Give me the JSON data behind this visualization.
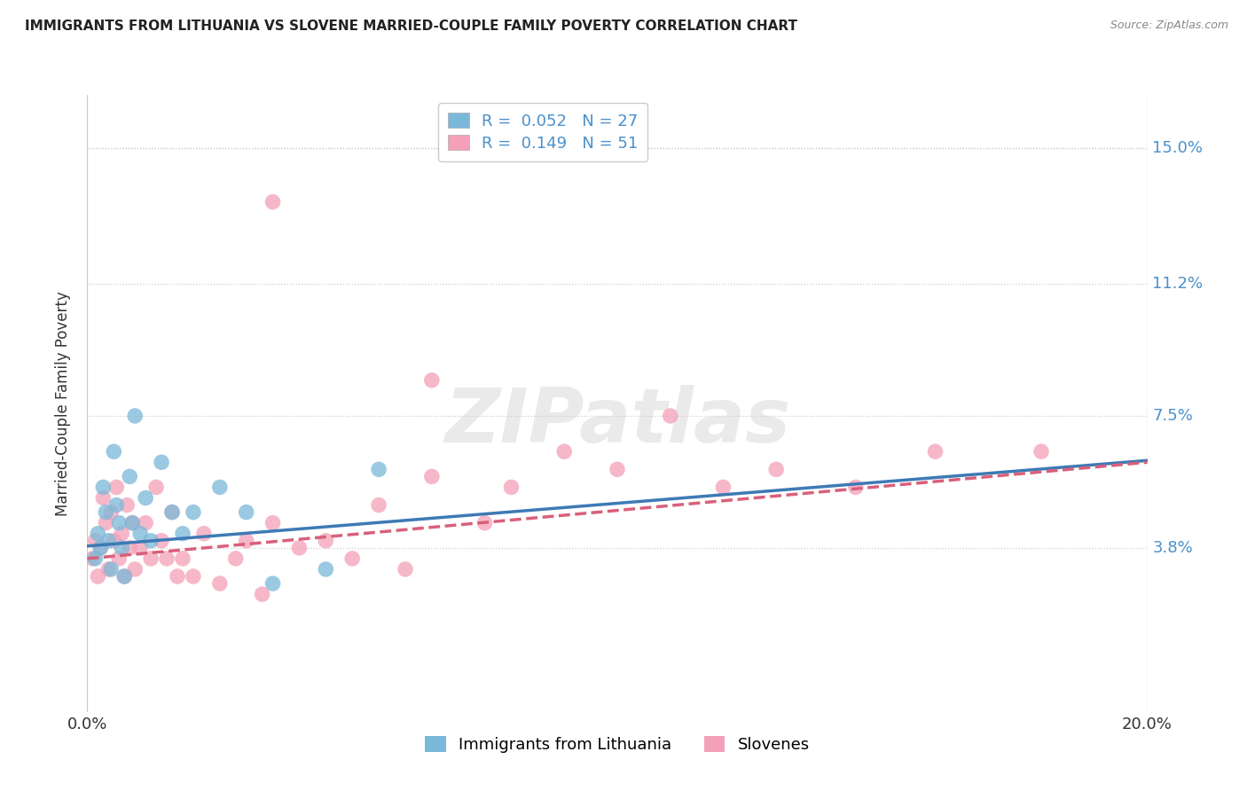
{
  "title": "IMMIGRANTS FROM LITHUANIA VS SLOVENE MARRIED-COUPLE FAMILY POVERTY CORRELATION CHART",
  "source": "Source: ZipAtlas.com",
  "ylabel": "Married-Couple Family Poverty",
  "ytick_vals": [
    3.8,
    7.5,
    11.2,
    15.0
  ],
  "ytick_labels": [
    "3.8%",
    "7.5%",
    "11.2%",
    "15.0%"
  ],
  "xrange": [
    0.0,
    20.0
  ],
  "yrange": [
    -0.8,
    16.5
  ],
  "legend1_r": "0.052",
  "legend1_n": "27",
  "legend2_r": "0.149",
  "legend2_n": "51",
  "color_blue": "#7ab8d9",
  "color_pink": "#f4a0b8",
  "color_blue_line": "#3d7ab5",
  "color_pink_line": "#d9607a",
  "legend_label1": "Immigrants from Lithuania",
  "legend_label2": "Slovenes",
  "blue_x": [
    0.15,
    0.2,
    0.25,
    0.3,
    0.35,
    0.4,
    0.45,
    0.5,
    0.55,
    0.6,
    0.65,
    0.7,
    0.8,
    0.85,
    0.9,
    1.0,
    1.1,
    1.2,
    1.4,
    1.6,
    1.8,
    2.0,
    2.5,
    3.0,
    3.5,
    4.5,
    5.5
  ],
  "blue_y": [
    3.5,
    4.2,
    3.8,
    5.5,
    4.8,
    4.0,
    3.2,
    6.5,
    5.0,
    4.5,
    3.8,
    3.0,
    5.8,
    4.5,
    7.5,
    4.2,
    5.2,
    4.0,
    6.2,
    4.8,
    4.2,
    4.8,
    5.5,
    4.8,
    2.8,
    3.2,
    6.0
  ],
  "pink_x": [
    0.1,
    0.15,
    0.2,
    0.25,
    0.3,
    0.35,
    0.4,
    0.45,
    0.5,
    0.55,
    0.6,
    0.65,
    0.7,
    0.75,
    0.8,
    0.85,
    0.9,
    1.0,
    1.1,
    1.2,
    1.3,
    1.4,
    1.5,
    1.6,
    1.7,
    1.8,
    2.0,
    2.2,
    2.5,
    2.8,
    3.0,
    3.3,
    3.5,
    4.0,
    4.5,
    5.0,
    5.5,
    6.0,
    6.5,
    7.5,
    8.0,
    9.0,
    10.0,
    11.0,
    12.0,
    13.0,
    14.5,
    16.0,
    18.0,
    6.5,
    3.5
  ],
  "pink_y": [
    3.5,
    4.0,
    3.0,
    3.8,
    5.2,
    4.5,
    3.2,
    4.8,
    4.0,
    5.5,
    3.5,
    4.2,
    3.0,
    5.0,
    3.8,
    4.5,
    3.2,
    3.8,
    4.5,
    3.5,
    5.5,
    4.0,
    3.5,
    4.8,
    3.0,
    3.5,
    3.0,
    4.2,
    2.8,
    3.5,
    4.0,
    2.5,
    4.5,
    3.8,
    4.0,
    3.5,
    5.0,
    3.2,
    5.8,
    4.5,
    5.5,
    6.5,
    6.0,
    7.5,
    5.5,
    6.0,
    5.5,
    6.5,
    6.5,
    8.5,
    13.5
  ]
}
